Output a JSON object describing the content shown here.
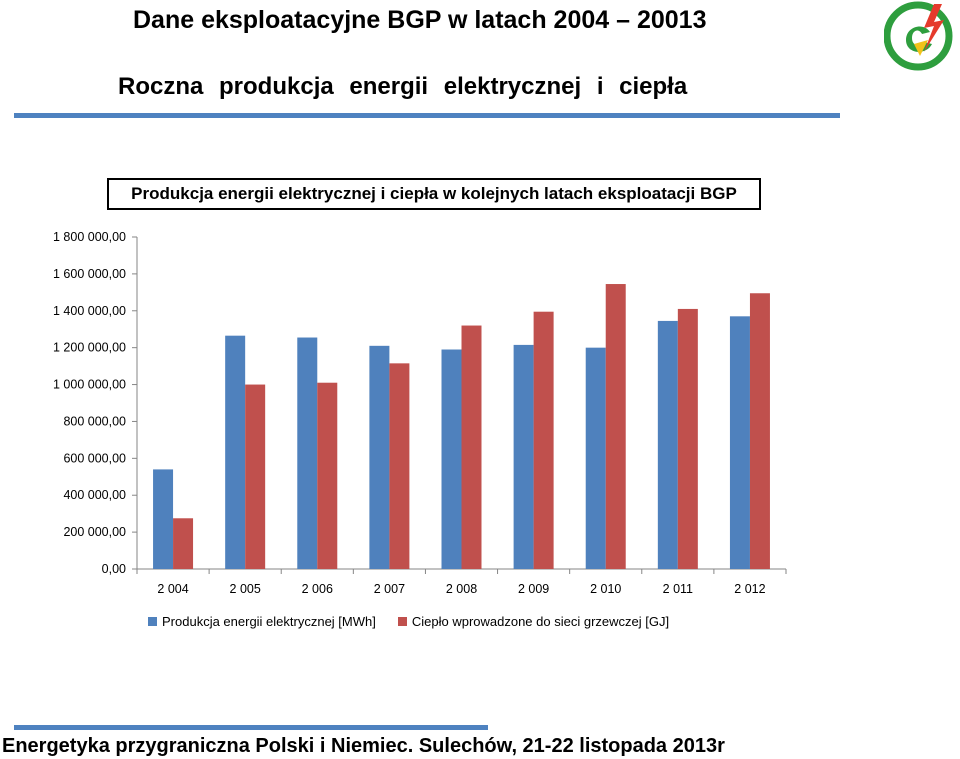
{
  "header": {
    "title": "Dane eksploatacyjne BGP w latach 2004 – 20013",
    "subtitle": "Roczna produkcja energii elektrycznej i ciepła"
  },
  "colors": {
    "accent": "#4e82c0",
    "series_electric": "#4f81bd",
    "series_heat": "#c0504d",
    "logo_green": "#2e9e3e",
    "logo_red": "#e53a2c",
    "logo_yellow": "#f2c21b"
  },
  "chart_data": {
    "type": "bar",
    "title": "Produkcja energii elektrycznej i ciepła w kolejnych latach eksploatacji BGP",
    "xlabel": "",
    "ylabel": "",
    "categories": [
      "2 004",
      "2 005",
      "2 006",
      "2 007",
      "2 008",
      "2 009",
      "2 010",
      "2 011",
      "2 012"
    ],
    "series": [
      {
        "name": "Produkcja energii elektrycznej [MWh]",
        "color": "#4f81bd",
        "values": [
          540000,
          1265000,
          1255000,
          1210000,
          1190000,
          1215000,
          1200000,
          1345000,
          1370000
        ]
      },
      {
        "name": "Ciepło wprowadzone do sieci grzewczej [GJ]",
        "color": "#c0504d",
        "values": [
          275000,
          1000000,
          1010000,
          1115000,
          1320000,
          1395000,
          1545000,
          1410000,
          1495000
        ]
      }
    ],
    "ylim": [
      0,
      1800000
    ],
    "yticks": [
      "0,00",
      "200 000,00",
      "400 000,00",
      "600 000,00",
      "800 000,00",
      "1 000 000,00",
      "1 200 000,00",
      "1 400 000,00",
      "1 600 000,00",
      "1 800 000,00"
    ],
    "grid": false,
    "legend_position": "bottom"
  },
  "footer": {
    "text": "Energetyka przygraniczna Polski i Niemiec. Sulechów, 21-22 listopada 2013r"
  }
}
